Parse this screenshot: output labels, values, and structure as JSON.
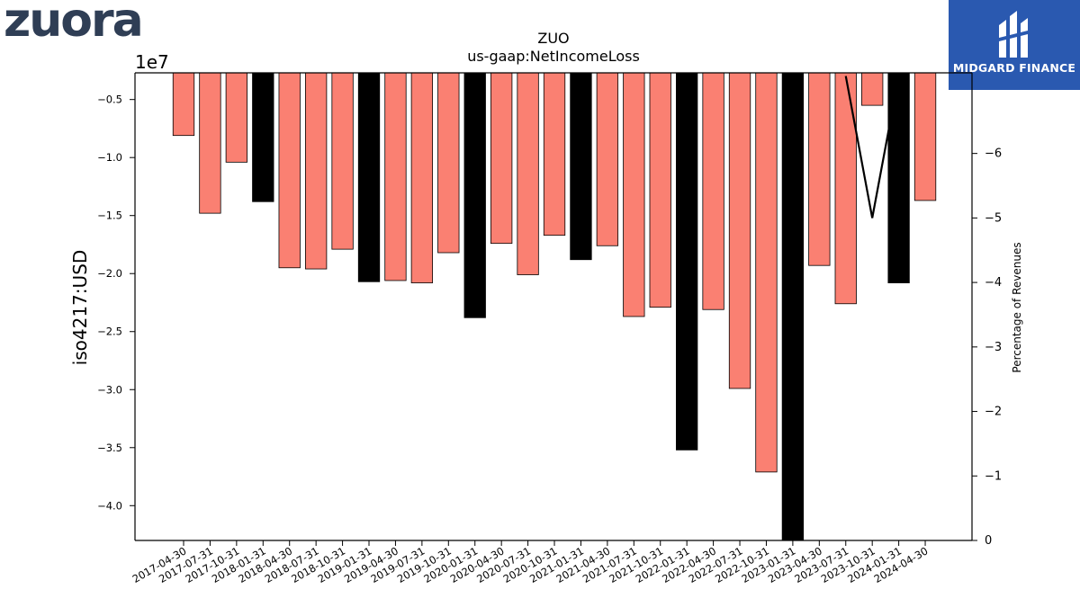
{
  "logos": {
    "left_text": "zuora",
    "right_text": "MIDGARD FINANCE"
  },
  "chart_data": {
    "type": "bar",
    "title": "ZUO",
    "subtitle": "us-gaap:NetIncomeLoss",
    "ylabel": "iso4217:USD",
    "y2label": "Percentage of Revenues",
    "y_offset_label": "1e7",
    "ylim": [
      -4.3,
      -0.27
    ],
    "y2lim": [
      0,
      7.25
    ],
    "yticks": [
      -0.5,
      -1.0,
      -1.5,
      -2.0,
      -2.5,
      -3.0,
      -3.5,
      -4.0
    ],
    "y2ticks": [
      0,
      1,
      2,
      3,
      4,
      5,
      6
    ],
    "y2tick_labels": [
      "0",
      "−1",
      "−2",
      "−3",
      "−4",
      "−5",
      "−6"
    ],
    "colors": {
      "quarter": "#fa8072",
      "annual": "#000000"
    },
    "categories": [
      "2017-04-30",
      "2017-07-31",
      "2017-10-31",
      "2018-01-31",
      "2018-04-30",
      "2018-07-31",
      "2018-10-31",
      "2019-01-31",
      "2019-04-30",
      "2019-07-31",
      "2019-10-31",
      "2020-01-31",
      "2020-04-30",
      "2020-07-31",
      "2020-10-31",
      "2021-01-31",
      "2021-04-30",
      "2021-07-31",
      "2021-10-31",
      "2022-01-31",
      "2022-04-30",
      "2022-07-31",
      "2022-10-31",
      "2023-01-31",
      "2023-04-30",
      "2023-07-31",
      "2023-10-31",
      "2024-01-31",
      "2024-04-30"
    ],
    "values": [
      -0.81,
      -1.48,
      -1.04,
      -1.38,
      -1.95,
      -1.96,
      -1.79,
      -2.07,
      -2.06,
      -2.08,
      -1.82,
      -2.38,
      -1.74,
      -2.01,
      -1.67,
      -1.88,
      -1.76,
      -2.37,
      -2.29,
      -3.52,
      -2.31,
      -2.99,
      -3.71,
      -4.3,
      -1.93,
      -2.26,
      -0.55,
      -2.08,
      -1.37
    ],
    "annual": [
      false,
      false,
      false,
      true,
      false,
      false,
      false,
      true,
      false,
      false,
      false,
      true,
      false,
      false,
      false,
      true,
      false,
      false,
      false,
      true,
      false,
      false,
      false,
      true,
      false,
      false,
      false,
      true,
      false
    ],
    "line_series": {
      "name": "Percentage of Revenues",
      "x": [
        "2023-07-31",
        "2023-10-31",
        "2024-01-31"
      ],
      "values": [
        7.2,
        5.0,
        7.2
      ]
    }
  }
}
